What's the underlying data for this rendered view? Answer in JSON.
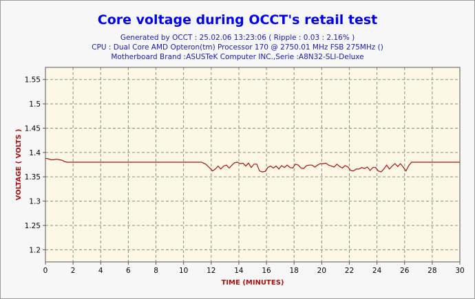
{
  "chart_data": {
    "type": "line",
    "title": "Core voltage during OCCT's retail test",
    "subtitle_lines": [
      "Generated by OCCT : 25.02.06 13:23:06 ( Ripple : 0.03 : 2.16% )",
      "CPU : Dual Core AMD Opteron(tm) Processor 170 @ 2750.01 MHz FSB 275MHz ()",
      "Motherboard Brand :ASUSTeK Computer INC.,Serie :A8N32-SLI-Deluxe"
    ],
    "xlabel": "TIME (MINUTES)",
    "ylabel": "VOLTAGE ( VOLTS )",
    "xlim": [
      0,
      30
    ],
    "ylim": [
      1.175,
      1.575
    ],
    "xticks": [
      0,
      2,
      4,
      6,
      8,
      10,
      12,
      14,
      16,
      18,
      20,
      22,
      24,
      26,
      28,
      30
    ],
    "yticks": [
      1.2,
      1.25,
      1.3,
      1.35,
      1.4,
      1.45,
      1.5,
      1.55
    ],
    "ytick_labels": [
      "1.2",
      "1.25",
      "1.3",
      "1.35",
      "1.4",
      "1.45",
      "1.5",
      "1.55"
    ],
    "grid": true,
    "line_color": "#aa1111",
    "series": [
      {
        "x": [
          0,
          0.2,
          0.4,
          0.6,
          0.8,
          1.0,
          1.2,
          1.4,
          1.6,
          3,
          6,
          9,
          11.3,
          11.6,
          11.9,
          12.1,
          12.3,
          12.5,
          12.7,
          12.9,
          13.1,
          13.3,
          13.5,
          13.7,
          13.9,
          14.1,
          14.3,
          14.5,
          14.7,
          14.9,
          15.1,
          15.3,
          15.5,
          15.7,
          15.9,
          16.1,
          16.3,
          16.5,
          16.7,
          16.9,
          17.1,
          17.3,
          17.5,
          17.7,
          17.9,
          18.1,
          18.3,
          18.5,
          18.7,
          18.9,
          19.1,
          19.3,
          19.5,
          19.7,
          19.9,
          20.1,
          20.3,
          20.5,
          20.7,
          20.9,
          21.1,
          21.3,
          21.5,
          21.7,
          21.9,
          22.1,
          22.3,
          22.5,
          22.7,
          22.9,
          23.1,
          23.3,
          23.5,
          23.7,
          23.9,
          24.1,
          24.3,
          24.5,
          24.7,
          24.9,
          25.1,
          25.3,
          25.5,
          25.7,
          25.9,
          26.1,
          26.3,
          26.5,
          27,
          28,
          29,
          30
        ],
        "y": [
          1.388,
          1.387,
          1.385,
          1.385,
          1.386,
          1.385,
          1.384,
          1.381,
          1.38,
          1.38,
          1.38,
          1.38,
          1.38,
          1.376,
          1.368,
          1.362,
          1.366,
          1.372,
          1.366,
          1.372,
          1.374,
          1.368,
          1.374,
          1.379,
          1.38,
          1.377,
          1.378,
          1.372,
          1.378,
          1.369,
          1.376,
          1.376,
          1.362,
          1.36,
          1.361,
          1.369,
          1.372,
          1.368,
          1.372,
          1.366,
          1.373,
          1.369,
          1.374,
          1.369,
          1.368,
          1.376,
          1.374,
          1.368,
          1.367,
          1.373,
          1.374,
          1.374,
          1.37,
          1.374,
          1.377,
          1.377,
          1.378,
          1.374,
          1.372,
          1.37,
          1.376,
          1.371,
          1.368,
          1.373,
          1.37,
          1.363,
          1.362,
          1.366,
          1.366,
          1.369,
          1.367,
          1.37,
          1.363,
          1.369,
          1.369,
          1.362,
          1.36,
          1.366,
          1.374,
          1.366,
          1.372,
          1.377,
          1.371,
          1.377,
          1.37,
          1.362,
          1.373,
          1.38,
          1.38,
          1.38,
          1.38,
          1.38
        ]
      }
    ]
  }
}
